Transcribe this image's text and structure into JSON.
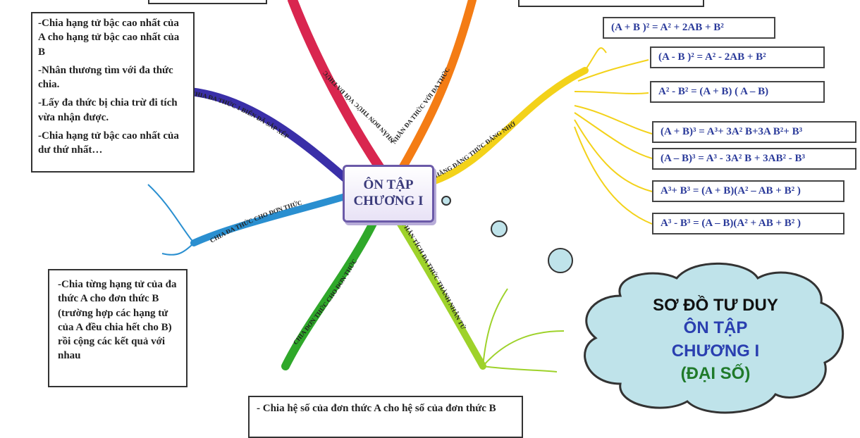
{
  "center": {
    "line1": "ÔN TẬP",
    "line2": "CHƯƠNG I"
  },
  "branches": [
    {
      "id": "b1",
      "label": "NHÂN ĐƠN THỨC VỚI ĐA THỨC",
      "color": "#d9264f"
    },
    {
      "id": "b2",
      "label": "NHÂN ĐA THỨC VỚI ĐA THỨC",
      "color": "#f47c14"
    },
    {
      "id": "b3",
      "label": "7 HẰNG ĐẲNG THỨC ĐÁNG NHỚ",
      "color": "#f3d21a"
    },
    {
      "id": "b4",
      "label": "CHIA ĐA THỨC 1 BIẾN ĐÃ SẮP XẾP",
      "color": "#3a2fa8"
    },
    {
      "id": "b5",
      "label": "CHIA ĐA THỨC CHO ĐƠN THỨC",
      "color": "#2a8fd0"
    },
    {
      "id": "b6",
      "label": "CHIA ĐƠN THỨC CHO ĐƠN THỨC",
      "color": "#2fa82a"
    },
    {
      "id": "b7",
      "label": "PHÂN TÍCH ĐA THỨC THÀNH NHÂN TỬ",
      "color": "#9ed22a"
    }
  ],
  "notes": {
    "divide_sorted": [
      "-Chia hạng tử bậc cao nhất của A cho hạng tử bậc cao nhất của B",
      "-Nhân thương tìm với đa thức chia.",
      "-Lấy đa thức bị chia trừ đi tích vừa nhận được.",
      "-Chia hạng tử bậc cao nhất của dư thứ nhất…"
    ],
    "divide_poly_by_mono": "-Chia từng hạng tử của đa thức A cho đơn thức B (trường hợp các hạng tử của A đều chia hết cho B) rồi cộng các kết quả với nhau",
    "divide_mono_by_mono": "- Chia hệ số của đơn thức A cho hệ số của đơn thức B"
  },
  "identities": [
    "(A + B )² = A² + 2AB + B²",
    "(A - B )² = A² - 2AB + B²",
    "A² - B² = (A + B) ( A – B)",
    "(A + B)³ = A³+ 3A² B+3A B²+ B³",
    "(A – B)³ = A³ - 3A² B + 3AB² - B³",
    "A³+ B³ = (A + B)(A² – AB + B² )",
    "A³ - B³ = (A – B)(A² + AB + B² )"
  ],
  "cloud": {
    "line1": "SƠ ĐỒ TƯ DUY",
    "line2": "ÔN TẬP",
    "line3": "CHƯƠNG I",
    "line4": "(ĐẠI SỐ)",
    "fill": "#bfe3ea",
    "stroke": "#333333"
  }
}
